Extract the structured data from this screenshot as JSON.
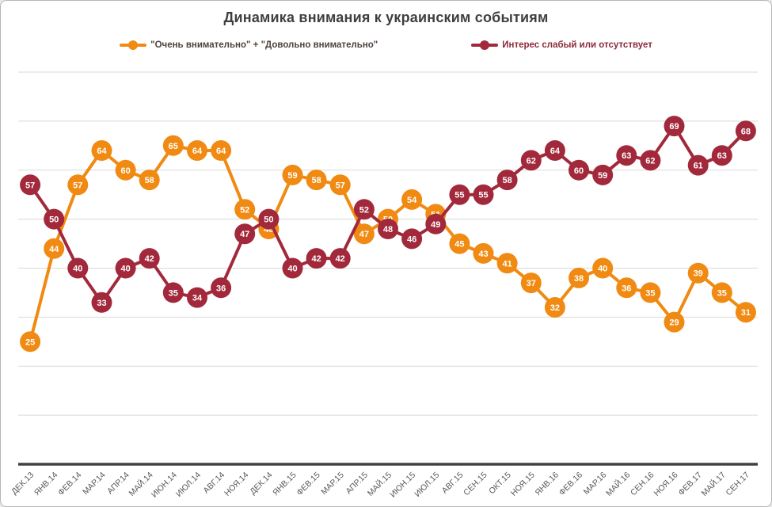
{
  "title": "Динамика внимания к украинским событиям",
  "legend": [
    {
      "label": "\"Очень внимательно\" + \"Довольно внимательно\"",
      "marker_color": "#F08A12",
      "text_color": "#4E423C"
    },
    {
      "label": "Интерес слабый или отсутствует",
      "marker_color": "#A2293B",
      "text_color": "#8C2A3A"
    }
  ],
  "colors": {
    "gridline": "#D9D9D9",
    "axis": "#404040",
    "x_labels": "#595959",
    "data_label_text": "#FFFFFF"
  },
  "chart_data": {
    "type": "line",
    "title": "Динамика внимания к украинским событиям",
    "xlabel": "",
    "ylabel": "",
    "ylim": [
      0,
      80
    ],
    "grid": true,
    "gridline_step": 10,
    "y_axis_labels_visible": false,
    "data_labels": "inside markers",
    "legend_position": "top",
    "categories": [
      "ДЕК.13",
      "ЯНВ.14",
      "ФЕВ.14",
      "МАР.14",
      "АПР.14",
      "МАЙ.14",
      "ИЮН.14",
      "ИЮЛ.14",
      "АВГ.14",
      "НОЯ.14",
      "ДЕК.14",
      "ЯНВ.15",
      "ФЕВ.15",
      "МАР.15",
      "АПР.15",
      "МАЙ.15",
      "ИЮН.15",
      "ИЮЛ.15",
      "АВГ.15",
      "СЕН.15",
      "ОКТ.15",
      "НОЯ.15",
      "ЯНВ.16",
      "ФЕВ.16",
      "МАР.16",
      "МАЙ.16",
      "СЕН.16",
      "НОЯ.16",
      "ФЕВ.17",
      "МАЙ.17",
      "СЕН.17"
    ],
    "series": [
      {
        "name": "\"Очень внимательно\" + \"Довольно внимательно\"",
        "color": "#F08A12",
        "values": [
          25,
          44,
          57,
          64,
          60,
          58,
          65,
          64,
          64,
          52,
          48,
          59,
          58,
          57,
          47,
          50,
          54,
          51,
          45,
          43,
          41,
          37,
          32,
          38,
          40,
          36,
          35,
          29,
          39,
          35,
          31
        ]
      },
      {
        "name": "Интерес слабый или отсутствует",
        "color": "#A2293B",
        "values": [
          57,
          50,
          40,
          33,
          40,
          42,
          35,
          34,
          36,
          47,
          50,
          40,
          42,
          42,
          52,
          48,
          46,
          49,
          55,
          55,
          58,
          62,
          64,
          60,
          59,
          63,
          62,
          69,
          61,
          63,
          68
        ]
      }
    ]
  }
}
